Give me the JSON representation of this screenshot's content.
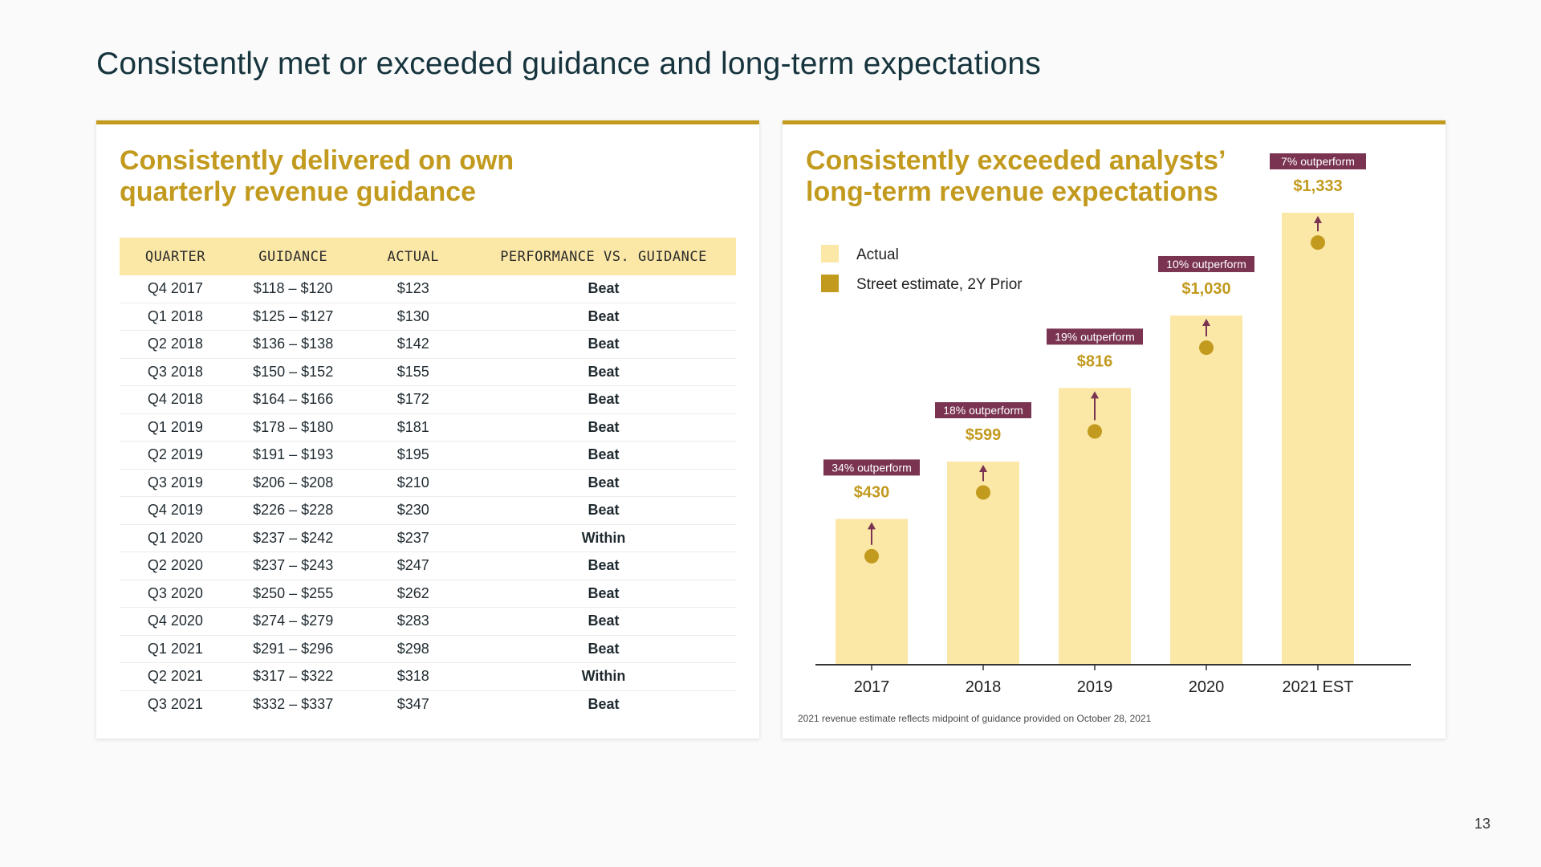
{
  "slide": {
    "title": "Consistently met or exceeded guidance and long-term expectations",
    "page_number": "13"
  },
  "left_panel": {
    "title": "Consistently delivered on own quarterly revenue guidance",
    "columns": [
      "QUARTER",
      "GUIDANCE",
      "ACTUAL",
      "PERFORMANCE VS. GUIDANCE"
    ],
    "rows": [
      {
        "quarter": "Q4 2017",
        "guidance": "$118 – $120",
        "actual": "$123",
        "performance": "Beat"
      },
      {
        "quarter": "Q1 2018",
        "guidance": "$125 – $127",
        "actual": "$130",
        "performance": "Beat"
      },
      {
        "quarter": "Q2 2018",
        "guidance": "$136 – $138",
        "actual": "$142",
        "performance": "Beat"
      },
      {
        "quarter": "Q3 2018",
        "guidance": "$150 – $152",
        "actual": "$155",
        "performance": "Beat"
      },
      {
        "quarter": "Q4 2018",
        "guidance": "$164 – $166",
        "actual": "$172",
        "performance": "Beat"
      },
      {
        "quarter": "Q1 2019",
        "guidance": "$178 – $180",
        "actual": "$181",
        "performance": "Beat"
      },
      {
        "quarter": "Q2 2019",
        "guidance": "$191 – $193",
        "actual": "$195",
        "performance": "Beat"
      },
      {
        "quarter": "Q3 2019",
        "guidance": "$206 – $208",
        "actual": "$210",
        "performance": "Beat"
      },
      {
        "quarter": "Q4 2019",
        "guidance": "$226 – $228",
        "actual": "$230",
        "performance": "Beat"
      },
      {
        "quarter": "Q1 2020",
        "guidance": "$237 – $242",
        "actual": "$237",
        "performance": "Within"
      },
      {
        "quarter": "Q2 2020",
        "guidance": "$237 – $243",
        "actual": "$247",
        "performance": "Beat"
      },
      {
        "quarter": "Q3 2020",
        "guidance": "$250 – $255",
        "actual": "$262",
        "performance": "Beat"
      },
      {
        "quarter": "Q4 2020",
        "guidance": "$274 – $279",
        "actual": "$283",
        "performance": "Beat"
      },
      {
        "quarter": "Q1 2021",
        "guidance": "$291 – $296",
        "actual": "$298",
        "performance": "Beat"
      },
      {
        "quarter": "Q2 2021",
        "guidance": "$317 – $322",
        "actual": "$318",
        "performance": "Within"
      },
      {
        "quarter": "Q3 2021",
        "guidance": "$332 – $337",
        "actual": "$347",
        "performance": "Beat"
      }
    ]
  },
  "right_panel": {
    "title": "Consistently exceeded analysts’ long-term revenue expectations",
    "footnote": "2021 revenue estimate reflects midpoint of guidance provided on October 28, 2021"
  },
  "colors": {
    "accent_gold": "#c29a1e",
    "bar_fill": "#fbe7a6",
    "street_dot": "#c29a1e",
    "badge_bg": "#7a3452",
    "perf_text": "#7a3452"
  },
  "chart_data": {
    "type": "bar",
    "title": "Consistently exceeded analysts’ long-term revenue expectations",
    "categories": [
      "2017",
      "2018",
      "2019",
      "2020",
      "2021 EST"
    ],
    "series": [
      {
        "name": "Actual",
        "values": [
          430,
          599,
          816,
          1030,
          1333
        ]
      },
      {
        "name": "Street estimate, 2Y Prior",
        "values": [
          320,
          508,
          688,
          935,
          1245
        ]
      }
    ],
    "value_labels": [
      "$430",
      "$599",
      "$816",
      "$1,030",
      "$1,333"
    ],
    "annotations": [
      "34% outperform",
      "18% outperform",
      "19% outperform",
      "10% outperform",
      "7% outperform"
    ],
    "legend": [
      "Actual",
      "Street estimate, 2Y Prior"
    ],
    "legend_position": "top-left",
    "xlabel": "",
    "ylabel": "",
    "ylim": [
      0,
      1333
    ],
    "grid": false
  }
}
